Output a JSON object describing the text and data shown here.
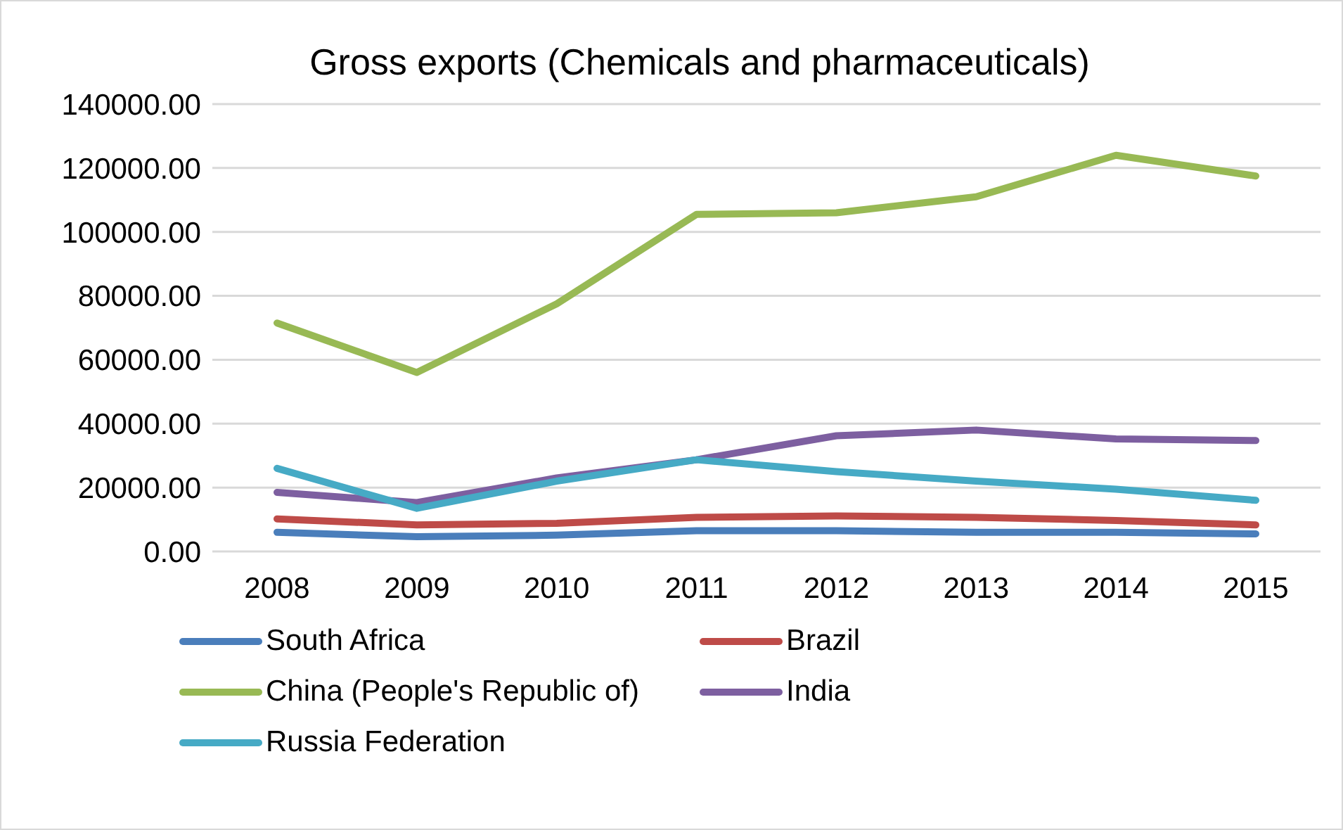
{
  "chart_data": {
    "type": "line",
    "title": "Gross exports (Chemicals and pharmaceuticals)",
    "categories": [
      "2008",
      "2009",
      "2010",
      "2011",
      "2012",
      "2013",
      "2014",
      "2015"
    ],
    "series": [
      {
        "name": "South Africa",
        "color": "#4a7ebb",
        "values": [
          6000,
          4600,
          5100,
          6500,
          6500,
          6000,
          6000,
          5500
        ]
      },
      {
        "name": "Brazil",
        "color": "#be4b48",
        "values": [
          10200,
          8300,
          8800,
          10700,
          11100,
          10700,
          9700,
          8300
        ]
      },
      {
        "name": "China (People's Republic of)",
        "color": "#98b954",
        "values": [
          71500,
          56000,
          77500,
          105500,
          106000,
          111000,
          124000,
          117500
        ]
      },
      {
        "name": "India",
        "color": "#7d5fa0",
        "values": [
          18500,
          15300,
          23000,
          28700,
          36200,
          38000,
          35200,
          34700
        ]
      },
      {
        "name": "Russia Federation",
        "color": "#46aac5",
        "values": [
          26000,
          13500,
          22000,
          28700,
          25000,
          22000,
          19500,
          16000
        ]
      }
    ],
    "ylim": [
      0,
      140000
    ],
    "yticks": [
      {
        "value": 0,
        "label": "0.00"
      },
      {
        "value": 20000,
        "label": "20000.00"
      },
      {
        "value": 40000,
        "label": "40000.00"
      },
      {
        "value": 60000,
        "label": "60000.00"
      },
      {
        "value": 80000,
        "label": "80000.00"
      },
      {
        "value": 100000,
        "label": "100000.00"
      },
      {
        "value": 120000,
        "label": "120000.00"
      },
      {
        "value": 140000,
        "label": "140000.00"
      }
    ],
    "grid": "y",
    "legend": "bottom",
    "marker": "none",
    "line_style": "solid"
  }
}
